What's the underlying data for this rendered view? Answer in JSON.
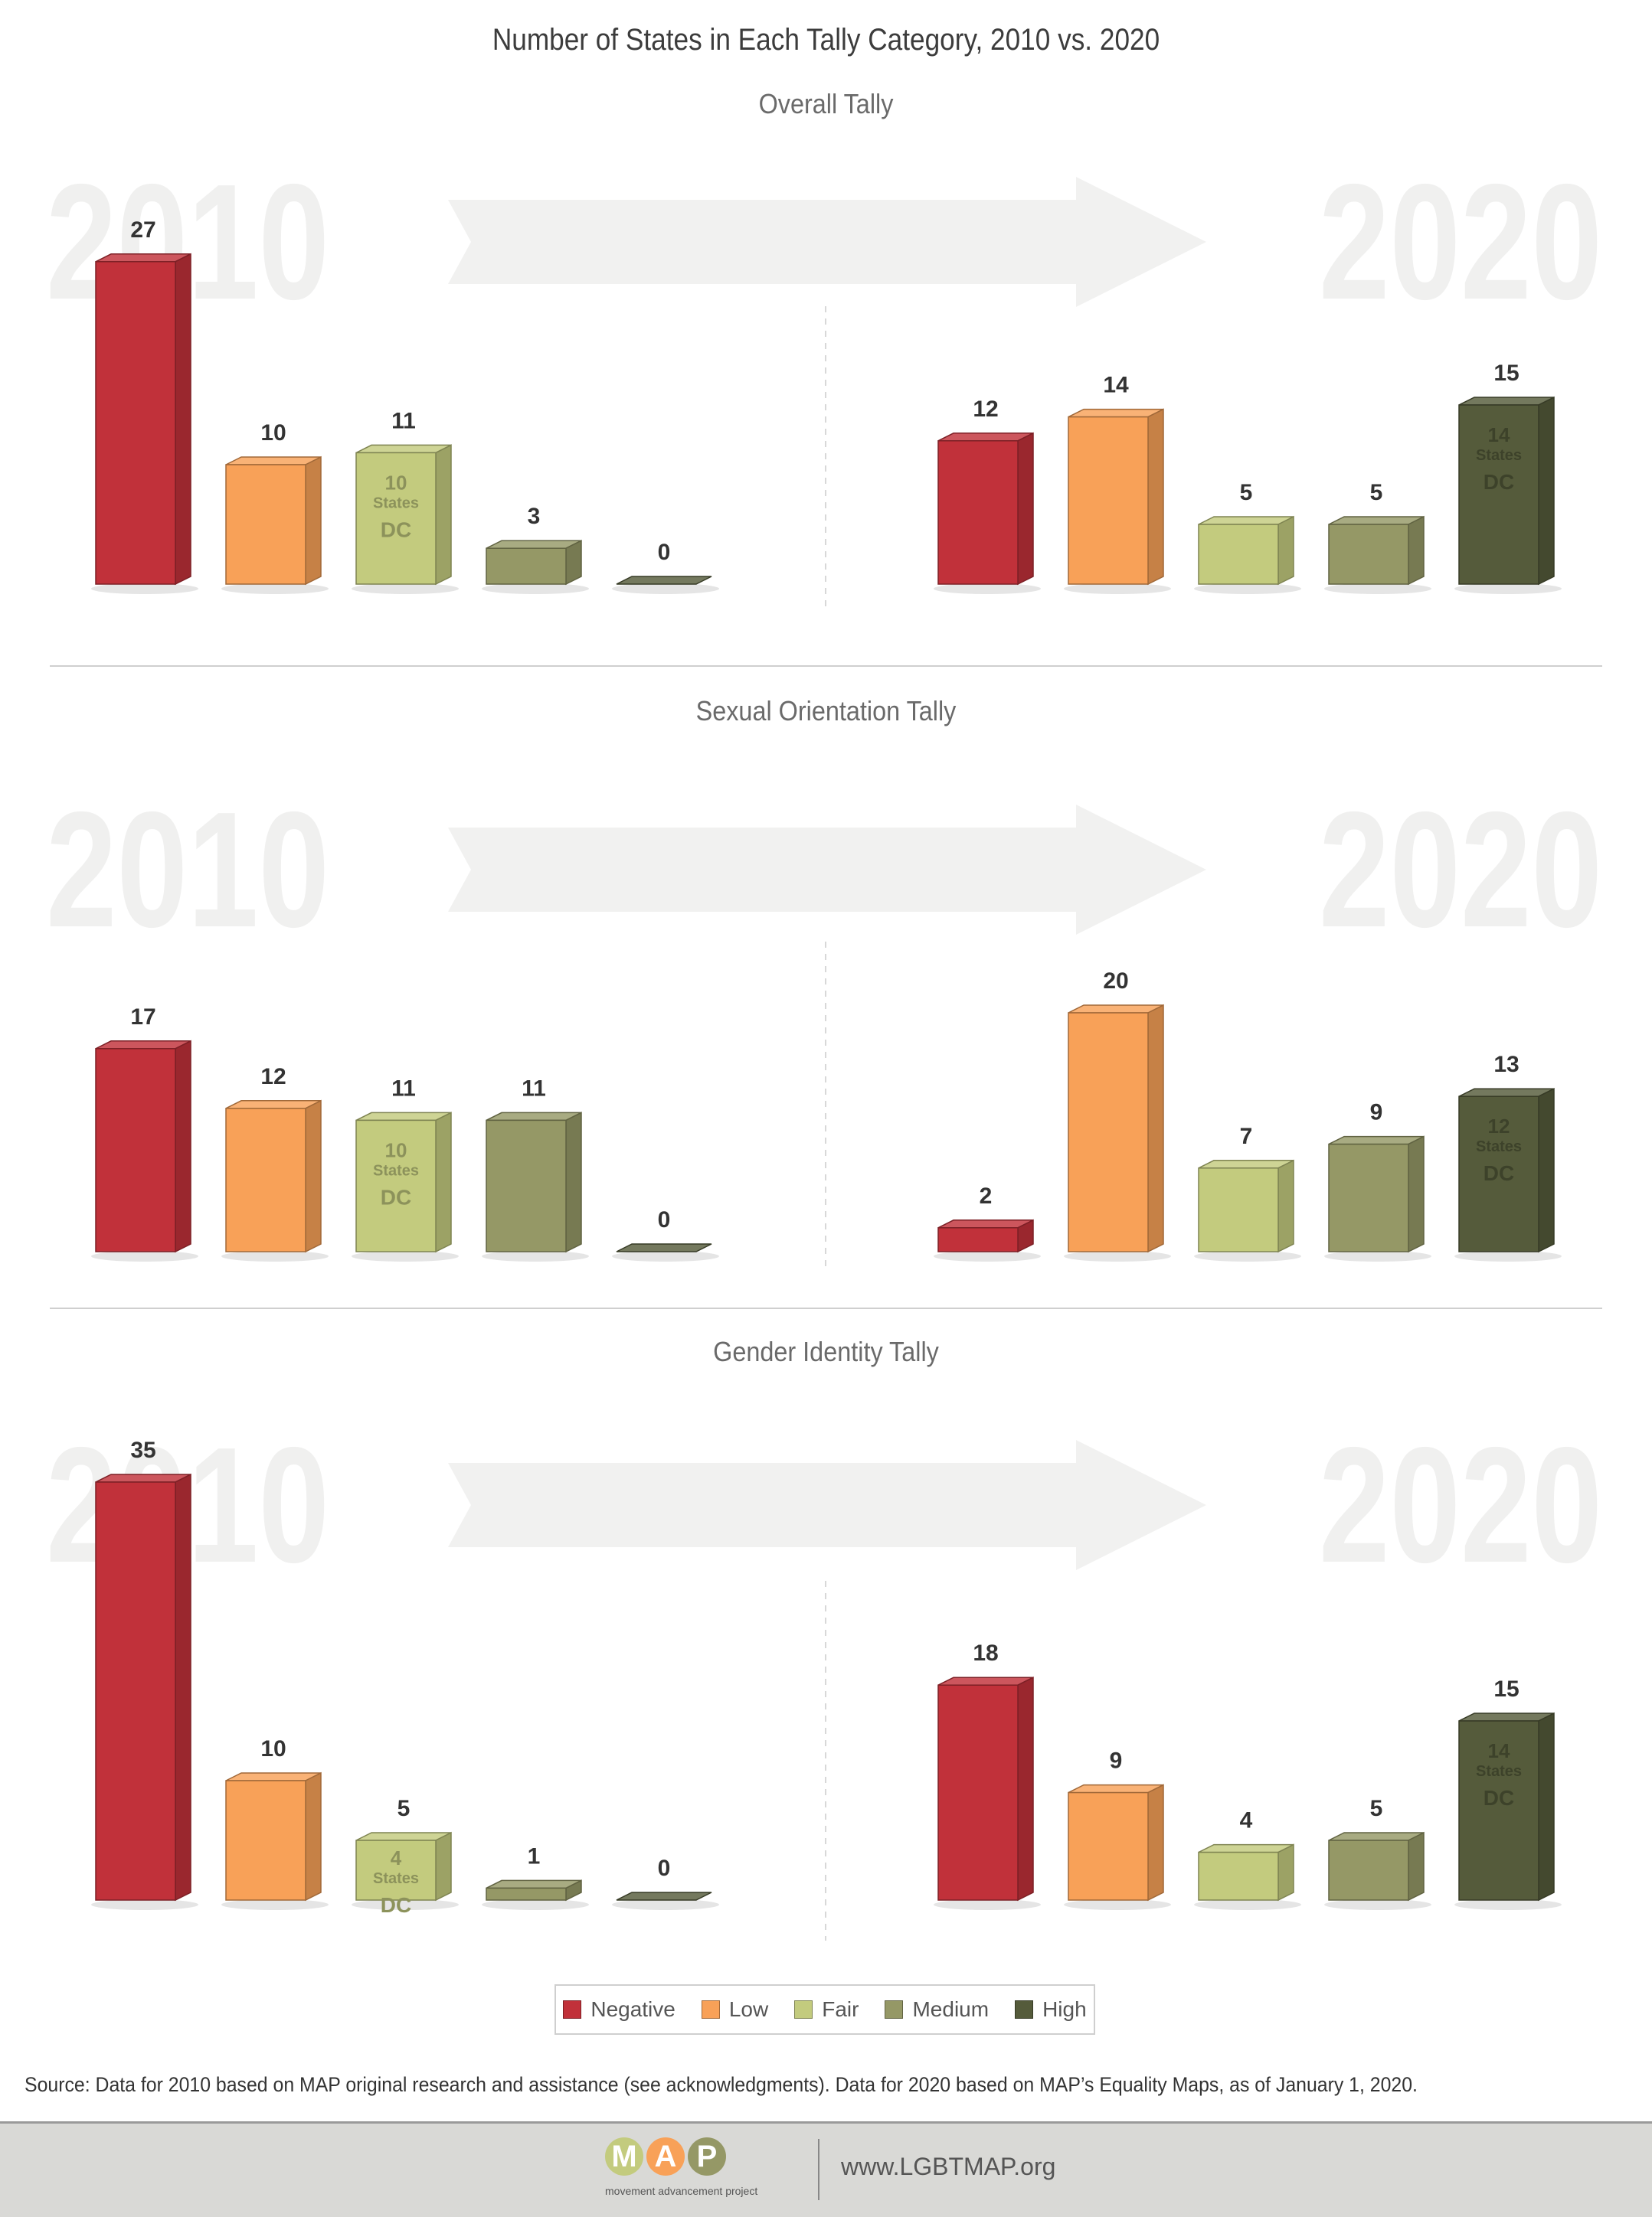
{
  "title": "Number of States in Each Tally Category, 2010 vs. 2020",
  "colors": {
    "Negative": "#c1313a",
    "Low": "#f8a158",
    "Fair": "#c3cb7e",
    "Medium": "#959866",
    "High": "#555b3b"
  },
  "legend": [
    {
      "label": "Negative",
      "color": "#c1313a"
    },
    {
      "label": "Low",
      "color": "#f8a158"
    },
    {
      "label": "Fair",
      "color": "#c3cb7e"
    },
    {
      "label": "Medium",
      "color": "#959866"
    },
    {
      "label": "High",
      "color": "#555b3b"
    }
  ],
  "year_labels": {
    "left": "2010",
    "right": "2020"
  },
  "chart_data": [
    {
      "type": "bar",
      "title": "Overall Tally",
      "categories": [
        "Negative",
        "Low",
        "Fair",
        "Medium",
        "High"
      ],
      "series": [
        {
          "name": "2010",
          "values": [
            27,
            10,
            11,
            3,
            0
          ],
          "inner_labels": [
            null,
            null,
            {
              "states": "10",
              "word": "States",
              "extra": "DC"
            },
            null,
            null
          ]
        },
        {
          "name": "2020",
          "values": [
            12,
            14,
            5,
            5,
            15
          ],
          "inner_labels": [
            null,
            null,
            null,
            null,
            {
              "states": "14",
              "word": "States",
              "extra": "DC"
            }
          ]
        }
      ]
    },
    {
      "type": "bar",
      "title": "Sexual Orientation Tally",
      "categories": [
        "Negative",
        "Low",
        "Fair",
        "Medium",
        "High"
      ],
      "series": [
        {
          "name": "2010",
          "values": [
            17,
            12,
            11,
            11,
            0
          ],
          "inner_labels": [
            null,
            null,
            {
              "states": "10",
              "word": "States",
              "extra": "DC"
            },
            null,
            null
          ]
        },
        {
          "name": "2020",
          "values": [
            2,
            20,
            7,
            9,
            13
          ],
          "inner_labels": [
            null,
            null,
            null,
            null,
            {
              "states": "12",
              "word": "States",
              "extra": "DC"
            }
          ]
        }
      ]
    },
    {
      "type": "bar",
      "title": "Gender Identity Tally",
      "categories": [
        "Negative",
        "Low",
        "Fair",
        "Medium",
        "High"
      ],
      "series": [
        {
          "name": "2010",
          "values": [
            35,
            10,
            5,
            1,
            0
          ],
          "inner_labels": [
            null,
            null,
            {
              "states": "4",
              "word": "States",
              "extra": "DC"
            },
            null,
            null
          ]
        },
        {
          "name": "2020",
          "values": [
            18,
            9,
            4,
            5,
            15
          ],
          "inner_labels": [
            null,
            null,
            null,
            null,
            {
              "states": "14",
              "word": "States",
              "extra": "DC"
            }
          ]
        }
      ]
    }
  ],
  "source": "Source: Data for 2010 based on MAP original research and assistance (see acknowledgments). Data for 2020 based on MAP’s Equality Maps, as of January 1, 2020.",
  "footer": {
    "logo_letters": [
      "M",
      "A",
      "P"
    ],
    "logo_tagline": "movement advancement project",
    "url": "www.LGBTMAP.org"
  }
}
